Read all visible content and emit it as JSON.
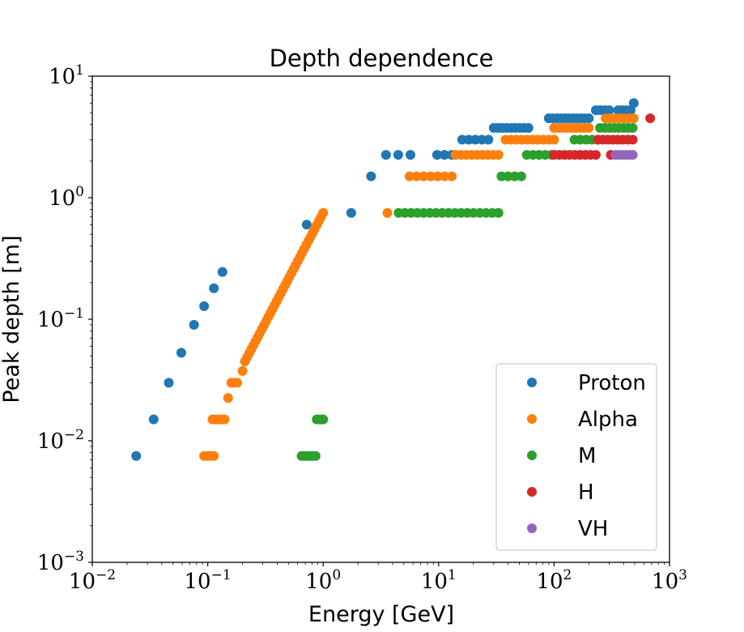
{
  "chart_data": {
    "type": "scatter",
    "title": "Depth dependence",
    "xlabel": "Energy [GeV]",
    "ylabel": "Peak depth [m]",
    "xscale": "log",
    "yscale": "log",
    "xlim": [
      0.01,
      1000
    ],
    "ylim": [
      0.001,
      10
    ],
    "x_ticks": [
      {
        "value": 0.01,
        "base": "10",
        "exp": "−2"
      },
      {
        "value": 0.1,
        "base": "10",
        "exp": "−1"
      },
      {
        "value": 1,
        "base": "10",
        "exp": "0"
      },
      {
        "value": 10,
        "base": "10",
        "exp": "1"
      },
      {
        "value": 100,
        "base": "10",
        "exp": "2"
      },
      {
        "value": 1000,
        "base": "10",
        "exp": "3"
      }
    ],
    "y_ticks": [
      {
        "value": 0.001,
        "base": "10",
        "exp": "−3"
      },
      {
        "value": 0.01,
        "base": "10",
        "exp": "−2"
      },
      {
        "value": 0.1,
        "base": "10",
        "exp": "−1"
      },
      {
        "value": 1,
        "base": "10",
        "exp": "0"
      },
      {
        "value": 10,
        "base": "10",
        "exp": "1"
      }
    ],
    "grid": false,
    "legend_position": "bottom-right",
    "series": [
      {
        "name": "Proton",
        "color": "#1f77b4",
        "segments": [
          {
            "y": 0.0075,
            "x": [
              0.024
            ]
          },
          {
            "y": 0.015,
            "x": [
              0.034
            ]
          },
          {
            "y": 0.03,
            "x": [
              0.046
            ]
          },
          {
            "y": 0.053,
            "x": [
              0.059
            ]
          },
          {
            "y": 0.09,
            "x": [
              0.076
            ]
          },
          {
            "y": 0.128,
            "x": [
              0.093
            ]
          },
          {
            "y": 0.18,
            "x": [
              0.113
            ]
          },
          {
            "y": 0.245,
            "x": [
              0.134
            ]
          },
          {
            "y": 0.6,
            "x": [
              0.72
            ]
          },
          {
            "y": 0.75,
            "x": [
              1.75
            ]
          },
          {
            "y": 1.5,
            "x": [
              2.6
            ]
          },
          {
            "y": 2.25,
            "xrange": [
              3.5,
              5.7
            ],
            "n": 3
          },
          {
            "y": 2.25,
            "xrange": [
              9.7,
              13
            ],
            "n": 3
          },
          {
            "y": 3.0,
            "xrange": [
              16,
              27
            ],
            "n": 5
          },
          {
            "y": 3.75,
            "xrange": [
              30,
              60
            ],
            "n": 9
          },
          {
            "y": 4.5,
            "xrange": [
              90,
              200
            ],
            "n": 11
          },
          {
            "y": 5.25,
            "xrange": [
              230,
              300
            ],
            "n": 4
          },
          {
            "y": 5.25,
            "xrange": [
              360,
              460
            ],
            "n": 4
          },
          {
            "y": 6.0,
            "x": [
              490
            ]
          }
        ]
      },
      {
        "name": "Alpha",
        "color": "#ff7f0e",
        "segments": [
          {
            "y": 0.0075,
            "xrange": [
              0.093,
              0.113
            ],
            "n": 4
          },
          {
            "y": 0.015,
            "xrange": [
              0.11,
              0.14
            ],
            "n": 5
          },
          {
            "y": 0.0225,
            "x": [
              0.15
            ]
          },
          {
            "y": 0.03,
            "xrange": [
              0.16,
              0.18
            ],
            "n": 3
          },
          {
            "y": 0.0375,
            "x": [
              0.2
            ]
          },
          {
            "curve": true,
            "xrange": [
              0.21,
              1.0
            ],
            "yrange": [
              0.045,
              0.75
            ],
            "n": 38
          },
          {
            "y": 0.75,
            "x": [
              3.6
            ]
          },
          {
            "y": 1.5,
            "xrange": [
              5.6,
              13
            ],
            "n": 7
          },
          {
            "y": 2.25,
            "xrange": [
              14,
              33
            ],
            "n": 9
          },
          {
            "y": 3.0,
            "xrange": [
              38,
              100
            ],
            "n": 10
          },
          {
            "y": 3.75,
            "xrange": [
              100,
              200
            ],
            "n": 9
          },
          {
            "y": 4.5,
            "xrange": [
              280,
              490
            ],
            "n": 7
          }
        ]
      },
      {
        "name": "M",
        "color": "#2ca02c",
        "segments": [
          {
            "y": 0.0075,
            "xrange": [
              0.65,
              0.86
            ],
            "n": 6
          },
          {
            "y": 0.015,
            "xrange": [
              0.88,
              1.0
            ],
            "n": 4
          },
          {
            "y": 0.75,
            "xrange": [
              4.5,
              33
            ],
            "n": 17
          },
          {
            "y": 1.5,
            "xrange": [
              35,
              52
            ],
            "n": 4
          },
          {
            "y": 2.25,
            "xrange": [
              58,
              95
            ],
            "n": 5
          },
          {
            "y": 3.0,
            "xrange": [
              150,
              240
            ],
            "n": 5
          },
          {
            "y": 3.75,
            "xrange": [
              250,
              480
            ],
            "n": 8
          }
        ]
      },
      {
        "name": "H",
        "color": "#d62728",
        "segments": [
          {
            "y": 2.25,
            "xrange": [
              100,
              230
            ],
            "n": 9
          },
          {
            "y": 2.25,
            "x": [
              310
            ]
          },
          {
            "y": 3.0,
            "xrange": [
              240,
              480
            ],
            "n": 8
          },
          {
            "y": 4.5,
            "x": [
              680
            ]
          }
        ]
      },
      {
        "name": "VH",
        "color": "#9467bd",
        "segments": [
          {
            "y": 2.25,
            "xrange": [
              340,
              480
            ],
            "n": 6
          }
        ]
      }
    ]
  }
}
